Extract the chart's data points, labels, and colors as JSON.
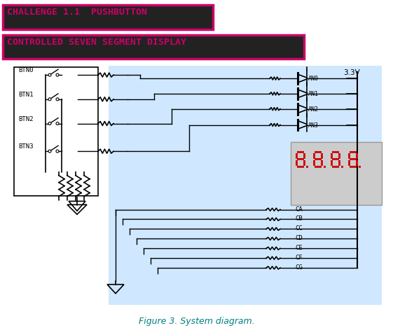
{
  "title1": "CHALLENGE 1.1  PUSHBUTTON",
  "title2": "CONTROLLED SEVEN SEGMENT DISPLAY",
  "title1_bg": "#cc0066",
  "title2_bg": "#cc0066",
  "title_text_color": "#cc0066",
  "title_border_color": "#cc0066",
  "title_bg_dark": "#222222",
  "bg_panel_color": "#d0e8ff",
  "fig_bg": "#ffffff",
  "caption": "Figure 3. System diagram.",
  "caption_color": "#008080",
  "btn_labels": [
    "BTN0",
    "BTN1",
    "BTN2",
    "BTN3"
  ],
  "anode_labels": [
    "AN0",
    "AN1",
    "AN2",
    "AN3"
  ],
  "cathode_labels": [
    "CA",
    "CB",
    "CC",
    "CD",
    "CE",
    "CF",
    "CG"
  ],
  "vcc_label": "3.3V",
  "line_color": "#000000",
  "seven_seg_bg": "#cccccc",
  "seven_seg_digit_color": "#cc1111",
  "wire_color": "#000000",
  "resistor_color": "#000000"
}
